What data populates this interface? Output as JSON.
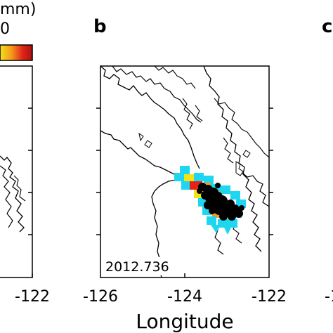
{
  "colorbar": {
    "label_fragment": "mm)",
    "tick_fragment": "0"
  },
  "panels": {
    "left_partial": {
      "ticks": [
        {
          "value": -122,
          "label": "-122"
        }
      ]
    },
    "b": {
      "letter": "b",
      "date": "2012.736",
      "ticks": [
        {
          "value": -126,
          "label": "-126"
        },
        {
          "value": -124,
          "label": "-124"
        },
        {
          "value": -122,
          "label": "-122"
        }
      ]
    },
    "c_partial": {
      "letter": "c",
      "tick_fragment": "-1"
    }
  },
  "xlabel": "Longitude",
  "colors": {
    "cyan": "#1fd6f0",
    "yellow": "#f2e21a",
    "orange": "#f59a1b",
    "red": "#e0241a",
    "dark_red": "#a8120f",
    "black": "#000000"
  }
}
